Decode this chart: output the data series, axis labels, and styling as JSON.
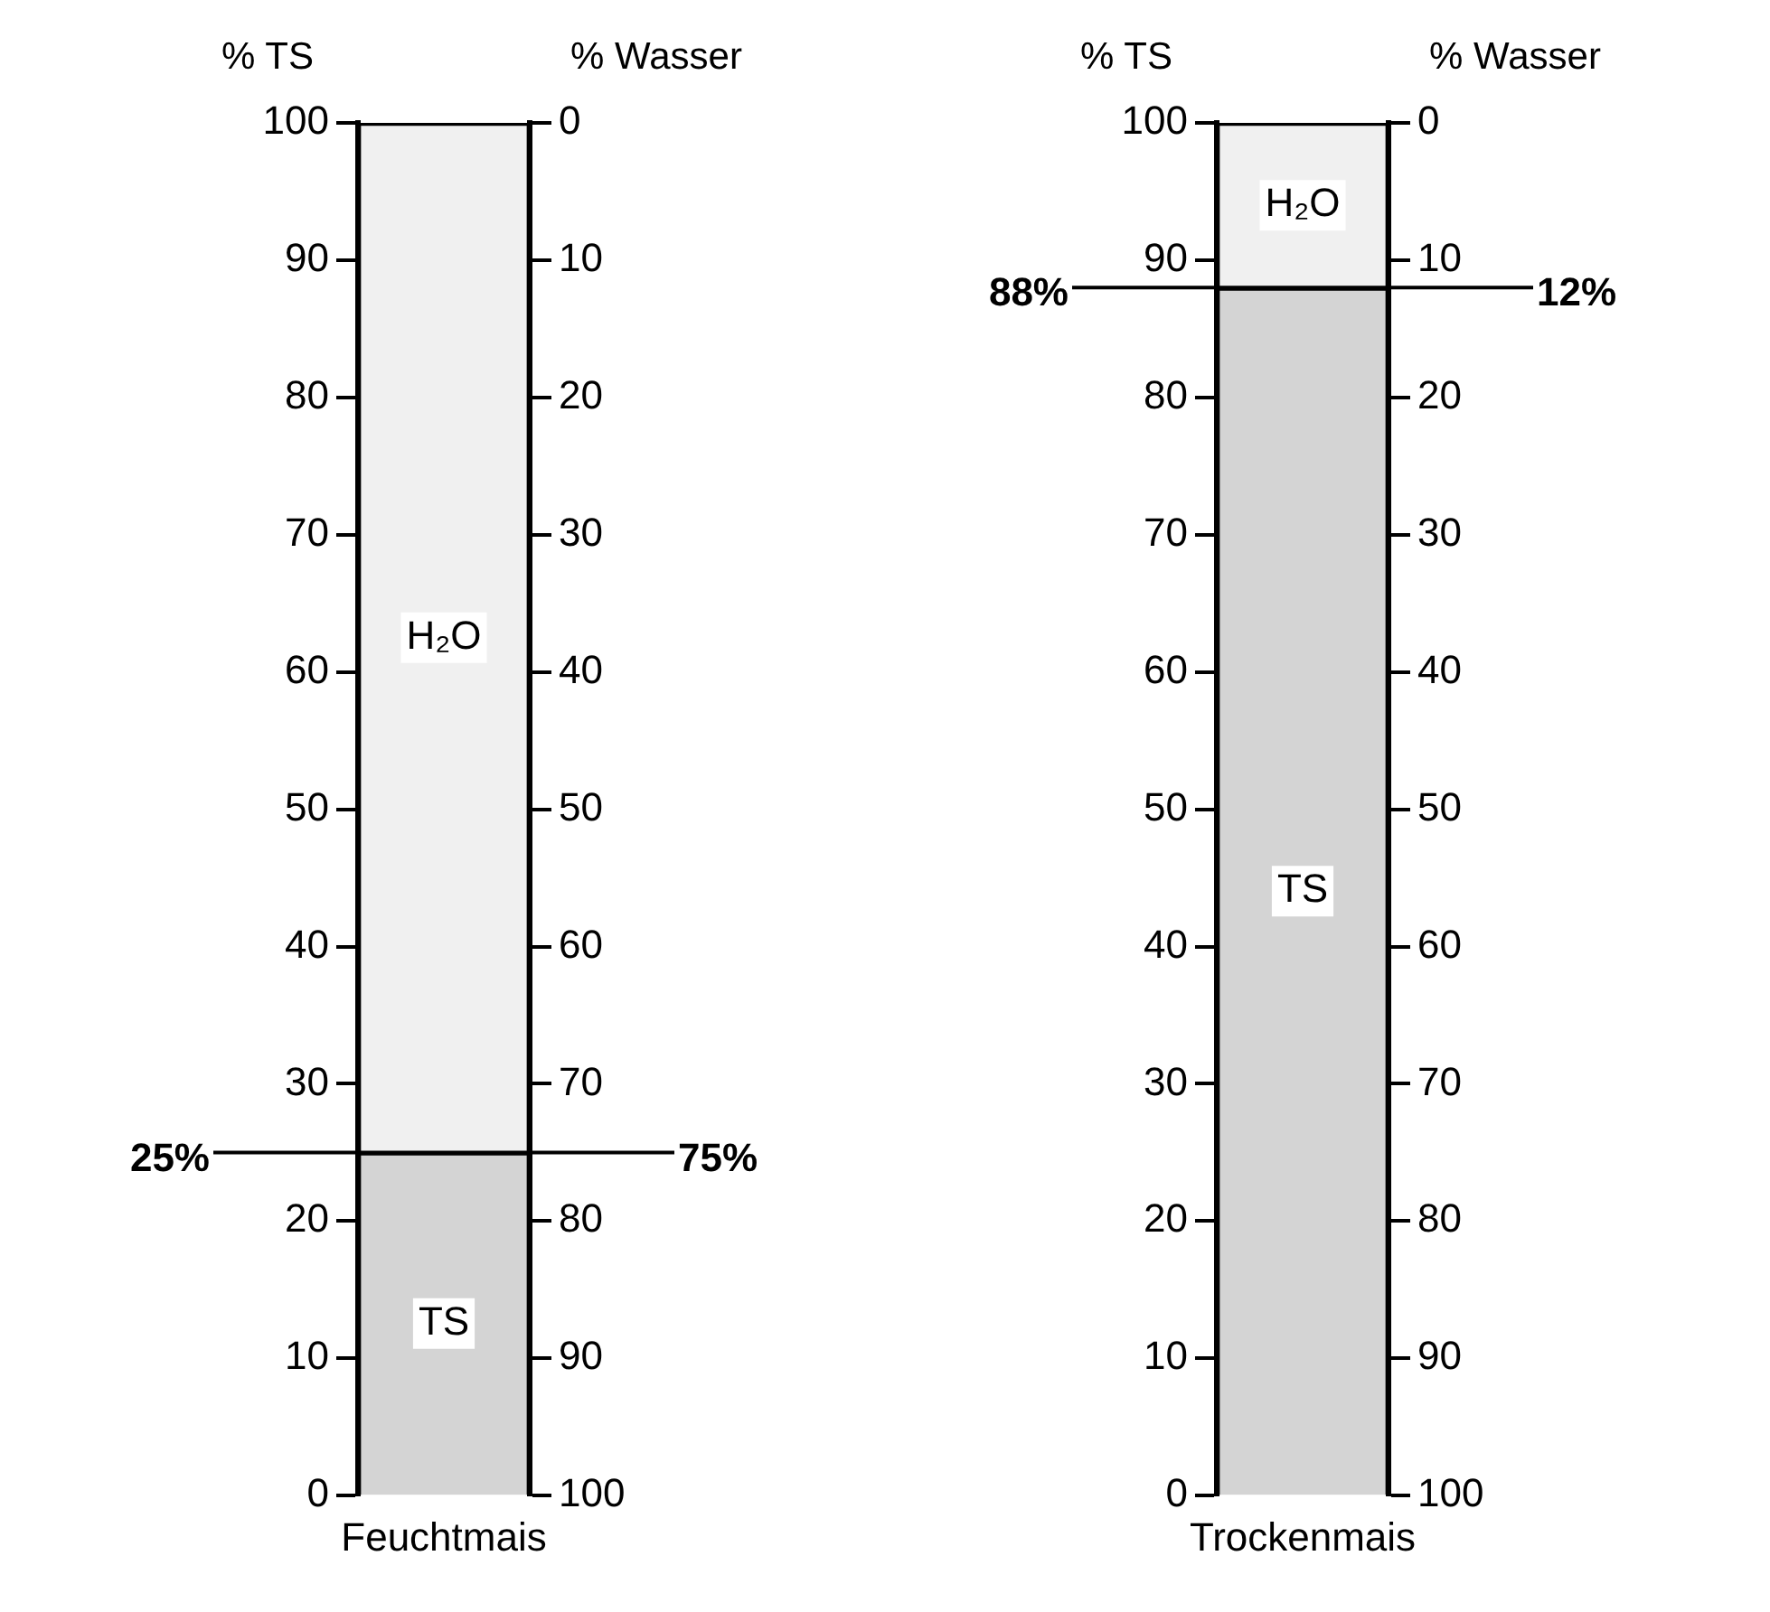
{
  "chart_data": [
    {
      "type": "bar",
      "stacked": true,
      "categories": [
        "Feuchtmais"
      ],
      "ylabel": "% TS",
      "y2label": "% Wasser",
      "ylim": [
        0,
        100
      ],
      "yticks": [
        0,
        10,
        20,
        30,
        40,
        50,
        60,
        70,
        80,
        90,
        100
      ],
      "y2lim": [
        100,
        0
      ],
      "y2ticks": [
        0,
        10,
        20,
        30,
        40,
        50,
        60,
        70,
        80,
        90,
        100
      ],
      "series": [
        {
          "name": "TS",
          "color": "#d4d4d4",
          "values": [
            25
          ]
        },
        {
          "name": "H₂O",
          "color": "#f0f0f0",
          "values": [
            75
          ]
        }
      ],
      "ref_lines": [
        {
          "axis": "y",
          "value": 25,
          "label": "25%"
        }
      ],
      "annotations": [
        "75%"
      ]
    },
    {
      "type": "bar",
      "stacked": true,
      "categories": [
        "Trockenmais"
      ],
      "ylabel": "% TS",
      "y2label": "% Wasser",
      "ylim": [
        0,
        100
      ],
      "yticks": [
        0,
        10,
        20,
        30,
        40,
        50,
        60,
        70,
        80,
        90,
        100
      ],
      "y2lim": [
        100,
        0
      ],
      "y2ticks": [
        0,
        10,
        20,
        30,
        40,
        50,
        60,
        70,
        80,
        90,
        100
      ],
      "series": [
        {
          "name": "TS",
          "color": "#d4d4d4",
          "values": [
            88
          ]
        },
        {
          "name": "H₂O",
          "color": "#f0f0f0",
          "values": [
            12
          ]
        }
      ],
      "ref_lines": [
        {
          "axis": "y",
          "value": 88,
          "label": "88%"
        }
      ],
      "annotations": [
        "12%"
      ]
    }
  ]
}
